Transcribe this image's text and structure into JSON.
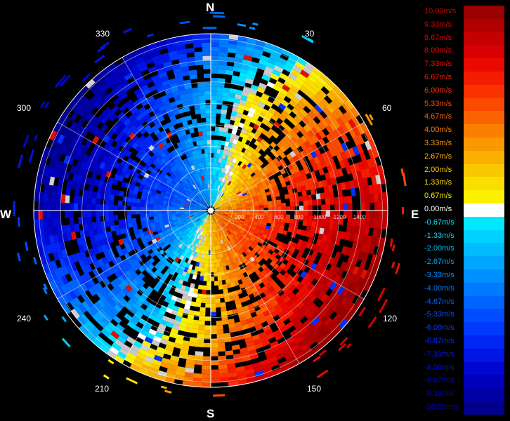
{
  "compass": {
    "north": "N",
    "east": "E",
    "south": "S",
    "west": "W",
    "bearings": [
      "30",
      "60",
      "120",
      "150",
      "210",
      "240",
      "300",
      "330"
    ]
  },
  "range_rings": [
    "200",
    "400",
    "600",
    "800",
    "1000",
    "1200",
    "1400"
  ],
  "legend": {
    "items": [
      {
        "label": "10.00m/s",
        "color": "#9a0000",
        "text_color": "#c80000"
      },
      {
        "label": "9.33m/s",
        "color": "#b00000",
        "text_color": "#d40000"
      },
      {
        "label": "8.67m/s",
        "color": "#c40000",
        "text_color": "#e00000"
      },
      {
        "label": "8.00m/s",
        "color": "#d80000",
        "text_color": "#ec0000"
      },
      {
        "label": "7.33m/s",
        "color": "#ea0a00",
        "text_color": "#f20a00"
      },
      {
        "label": "6.67m/s",
        "color": "#f41c00",
        "text_color": "#f61c00"
      },
      {
        "label": "6.00m/s",
        "color": "#fa3200",
        "text_color": "#fa3200"
      },
      {
        "label": "5.33m/s",
        "color": "#fa4a00",
        "text_color": "#fa4a00"
      },
      {
        "label": "4.67m/s",
        "color": "#fa6400",
        "text_color": "#fa6400"
      },
      {
        "label": "4.00m/s",
        "color": "#fa7e00",
        "text_color": "#fa7e00"
      },
      {
        "label": "3.33m/s",
        "color": "#fa9800",
        "text_color": "#fa9800"
      },
      {
        "label": "2.67m/s",
        "color": "#fab000",
        "text_color": "#fab000"
      },
      {
        "label": "2.00m/s",
        "color": "#fac800",
        "text_color": "#fac800"
      },
      {
        "label": "1.33m/s",
        "color": "#fade00",
        "text_color": "#fade00"
      },
      {
        "label": "0.67m/s",
        "color": "#faf000",
        "text_color": "#faf000"
      },
      {
        "label": "0.00m/s",
        "color": "#ffffff",
        "text_color": "#ffffff"
      },
      {
        "label": "-0.67m/s",
        "color": "#00e8ff",
        "text_color": "#00e8ff"
      },
      {
        "label": "-1.33m/s",
        "color": "#00d2ff",
        "text_color": "#00d2ff"
      },
      {
        "label": "-2.00m/s",
        "color": "#00bcff",
        "text_color": "#00bcff"
      },
      {
        "label": "-2.67m/s",
        "color": "#00a6ff",
        "text_color": "#00a6ff"
      },
      {
        "label": "-3.33m/s",
        "color": "#0090ff",
        "text_color": "#0090ff"
      },
      {
        "label": "-4.00m/s",
        "color": "#007aff",
        "text_color": "#0078ff"
      },
      {
        "label": "-4.67m/s",
        "color": "#0064ff",
        "text_color": "#0064ff"
      },
      {
        "label": "-5.33m/s",
        "color": "#004eff",
        "text_color": "#0050ff"
      },
      {
        "label": "-6.00m/s",
        "color": "#003aff",
        "text_color": "#003cff"
      },
      {
        "label": "-6.67m/s",
        "color": "#0026f4",
        "text_color": "#002aff"
      },
      {
        "label": "-7.33m/s",
        "color": "#0014e4",
        "text_color": "#0018ff"
      },
      {
        "label": "-8.00m/s",
        "color": "#0008d0",
        "text_color": "#000cf0"
      },
      {
        "label": "-8.67m/s",
        "color": "#0000bc",
        "text_color": "#0000e0"
      },
      {
        "label": "-9.33m/s",
        "color": "#0000a4",
        "text_color": "#0000d0"
      },
      {
        "label": "-10.00m/s",
        "color": "#00008c",
        "text_color": "#0000c0"
      }
    ]
  }
}
